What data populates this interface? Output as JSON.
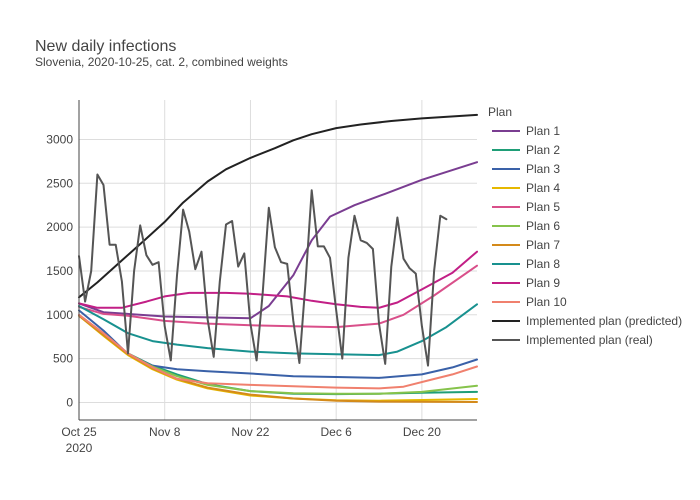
{
  "chart_data": {
    "type": "line",
    "title": "New daily infections",
    "subtitle": "Slovenia, 2020-10-25, cat. 2, combined weights",
    "xlabel": "",
    "ylabel": "",
    "x_range": [
      "2020-10-25",
      "2020-12-29"
    ],
    "ylim": [
      -200,
      3450
    ],
    "x_ticks": [
      {
        "date": "2020-10-25",
        "label": "Oct 25",
        "sublabel": "2020"
      },
      {
        "date": "2020-11-08",
        "label": "Nov 8",
        "sublabel": ""
      },
      {
        "date": "2020-11-22",
        "label": "Nov 22",
        "sublabel": ""
      },
      {
        "date": "2020-12-06",
        "label": "Dec 6",
        "sublabel": ""
      },
      {
        "date": "2020-12-20",
        "label": "Dec 20",
        "sublabel": ""
      }
    ],
    "y_ticks": [
      0,
      500,
      1000,
      1500,
      2000,
      2500,
      3000
    ],
    "y_tick_labels": [
      "0",
      "500",
      "1000",
      "1500",
      "2000",
      "2500",
      "3000"
    ],
    "grid": true,
    "legend": {
      "title": "Plan",
      "position": "right"
    },
    "series": [
      {
        "name": "Plan 1",
        "color": "#7a3d91",
        "points": [
          [
            "2020-10-25",
            1130
          ],
          [
            "2020-10-29",
            1030
          ],
          [
            "2020-11-08",
            980
          ],
          [
            "2020-11-22",
            960
          ],
          [
            "2020-11-25",
            1100
          ],
          [
            "2020-11-29",
            1450
          ],
          [
            "2020-12-02",
            1850
          ],
          [
            "2020-12-05",
            2120
          ],
          [
            "2020-12-09",
            2250
          ],
          [
            "2020-12-14",
            2380
          ],
          [
            "2020-12-20",
            2540
          ],
          [
            "2020-12-29",
            2740
          ]
        ]
      },
      {
        "name": "Plan 2",
        "color": "#1f9e77",
        "points": [
          [
            "2020-10-25",
            990
          ],
          [
            "2020-10-29",
            780
          ],
          [
            "2020-11-02",
            560
          ],
          [
            "2020-11-06",
            420
          ],
          [
            "2020-11-10",
            320
          ],
          [
            "2020-11-15",
            210
          ],
          [
            "2020-11-22",
            130
          ],
          [
            "2020-11-29",
            100
          ],
          [
            "2020-12-06",
            95
          ],
          [
            "2020-12-13",
            100
          ],
          [
            "2020-12-20",
            110
          ],
          [
            "2020-12-29",
            120
          ]
        ]
      },
      {
        "name": "Plan 3",
        "color": "#3a61a8",
        "points": [
          [
            "2020-10-25",
            1050
          ],
          [
            "2020-10-29",
            820
          ],
          [
            "2020-11-02",
            550
          ],
          [
            "2020-11-06",
            420
          ],
          [
            "2020-11-10",
            380
          ],
          [
            "2020-11-15",
            355
          ],
          [
            "2020-11-22",
            330
          ],
          [
            "2020-11-29",
            300
          ],
          [
            "2020-12-06",
            290
          ],
          [
            "2020-12-13",
            280
          ],
          [
            "2020-12-20",
            320
          ],
          [
            "2020-12-25",
            400
          ],
          [
            "2020-12-29",
            490
          ]
        ]
      },
      {
        "name": "Plan 4",
        "color": "#e6b800",
        "points": [
          [
            "2020-10-25",
            990
          ],
          [
            "2020-10-29",
            760
          ],
          [
            "2020-11-02",
            540
          ],
          [
            "2020-11-06",
            380
          ],
          [
            "2020-11-10",
            260
          ],
          [
            "2020-11-15",
            160
          ],
          [
            "2020-11-22",
            80
          ],
          [
            "2020-11-29",
            45
          ],
          [
            "2020-12-06",
            25
          ],
          [
            "2020-12-13",
            20
          ],
          [
            "2020-12-20",
            28
          ],
          [
            "2020-12-29",
            40
          ]
        ]
      },
      {
        "name": "Plan 5",
        "color": "#d94f8a",
        "points": [
          [
            "2020-10-25",
            1090
          ],
          [
            "2020-10-29",
            1010
          ],
          [
            "2020-11-02",
            990
          ],
          [
            "2020-11-08",
            930
          ],
          [
            "2020-11-15",
            900
          ],
          [
            "2020-11-22",
            880
          ],
          [
            "2020-11-29",
            870
          ],
          [
            "2020-12-06",
            860
          ],
          [
            "2020-12-13",
            900
          ],
          [
            "2020-12-17",
            1000
          ],
          [
            "2020-12-22",
            1220
          ],
          [
            "2020-12-29",
            1560
          ]
        ]
      },
      {
        "name": "Plan 6",
        "color": "#86c34b",
        "points": [
          [
            "2020-10-25",
            990
          ],
          [
            "2020-10-29",
            780
          ],
          [
            "2020-11-02",
            555
          ],
          [
            "2020-11-06",
            410
          ],
          [
            "2020-11-10",
            300
          ],
          [
            "2020-11-15",
            200
          ],
          [
            "2020-11-22",
            130
          ],
          [
            "2020-11-29",
            105
          ],
          [
            "2020-12-06",
            100
          ],
          [
            "2020-12-13",
            100
          ],
          [
            "2020-12-20",
            120
          ],
          [
            "2020-12-29",
            190
          ]
        ]
      },
      {
        "name": "Plan 7",
        "color": "#d48a1a",
        "points": [
          [
            "2020-10-25",
            990
          ],
          [
            "2020-10-29",
            770
          ],
          [
            "2020-11-02",
            550
          ],
          [
            "2020-11-06",
            390
          ],
          [
            "2020-11-10",
            270
          ],
          [
            "2020-11-15",
            170
          ],
          [
            "2020-11-22",
            90
          ],
          [
            "2020-11-29",
            45
          ],
          [
            "2020-12-06",
            20
          ],
          [
            "2020-12-13",
            10
          ],
          [
            "2020-12-20",
            8
          ],
          [
            "2020-12-29",
            5
          ]
        ]
      },
      {
        "name": "Plan 8",
        "color": "#18918f",
        "points": [
          [
            "2020-10-25",
            1100
          ],
          [
            "2020-10-29",
            950
          ],
          [
            "2020-11-02",
            790
          ],
          [
            "2020-11-06",
            700
          ],
          [
            "2020-11-10",
            660
          ],
          [
            "2020-11-15",
            620
          ],
          [
            "2020-11-22",
            580
          ],
          [
            "2020-11-29",
            560
          ],
          [
            "2020-12-06",
            550
          ],
          [
            "2020-12-13",
            540
          ],
          [
            "2020-12-16",
            580
          ],
          [
            "2020-12-20",
            700
          ],
          [
            "2020-12-24",
            860
          ],
          [
            "2020-12-29",
            1120
          ]
        ]
      },
      {
        "name": "Plan 9",
        "color": "#c21f86",
        "points": [
          [
            "2020-10-25",
            1130
          ],
          [
            "2020-10-28",
            1080
          ],
          [
            "2020-11-01",
            1080
          ],
          [
            "2020-11-05",
            1150
          ],
          [
            "2020-11-08",
            1210
          ],
          [
            "2020-11-12",
            1250
          ],
          [
            "2020-11-18",
            1250
          ],
          [
            "2020-11-22",
            1240
          ],
          [
            "2020-11-28",
            1210
          ],
          [
            "2020-12-02",
            1160
          ],
          [
            "2020-12-06",
            1120
          ],
          [
            "2020-12-10",
            1090
          ],
          [
            "2020-12-13",
            1080
          ],
          [
            "2020-12-16",
            1140
          ],
          [
            "2020-12-20",
            1290
          ],
          [
            "2020-12-25",
            1480
          ],
          [
            "2020-12-29",
            1720
          ]
        ]
      },
      {
        "name": "Plan 10",
        "color": "#f0806e",
        "points": [
          [
            "2020-10-25",
            1000
          ],
          [
            "2020-10-29",
            790
          ],
          [
            "2020-11-02",
            560
          ],
          [
            "2020-11-06",
            400
          ],
          [
            "2020-11-10",
            270
          ],
          [
            "2020-11-15",
            220
          ],
          [
            "2020-11-22",
            200
          ],
          [
            "2020-11-29",
            185
          ],
          [
            "2020-12-06",
            170
          ],
          [
            "2020-12-13",
            160
          ],
          [
            "2020-12-17",
            180
          ],
          [
            "2020-12-21",
            250
          ],
          [
            "2020-12-25",
            320
          ],
          [
            "2020-12-29",
            410
          ]
        ]
      },
      {
        "name": "Implemented plan (predicted)",
        "color": "#222222",
        "points": [
          [
            "2020-10-25",
            1200
          ],
          [
            "2020-10-28",
            1370
          ],
          [
            "2020-11-01",
            1620
          ],
          [
            "2020-11-05",
            1870
          ],
          [
            "2020-11-08",
            2060
          ],
          [
            "2020-11-11",
            2280
          ],
          [
            "2020-11-15",
            2520
          ],
          [
            "2020-11-18",
            2660
          ],
          [
            "2020-11-22",
            2790
          ],
          [
            "2020-11-26",
            2900
          ],
          [
            "2020-11-29",
            2990
          ],
          [
            "2020-12-02",
            3060
          ],
          [
            "2020-12-06",
            3130
          ],
          [
            "2020-12-10",
            3170
          ],
          [
            "2020-12-15",
            3210
          ],
          [
            "2020-12-20",
            3240
          ],
          [
            "2020-12-29",
            3280
          ]
        ]
      },
      {
        "name": "Implemented plan (real)",
        "color": "#555555",
        "points": [
          [
            "2020-10-25",
            1670
          ],
          [
            "2020-10-26",
            1150
          ],
          [
            "2020-10-27",
            1500
          ],
          [
            "2020-10-28",
            2600
          ],
          [
            "2020-10-29",
            2480
          ],
          [
            "2020-10-30",
            1800
          ],
          [
            "2020-10-31",
            1800
          ],
          [
            "2020-11-01",
            1380
          ],
          [
            "2020-11-02",
            560
          ],
          [
            "2020-11-03",
            1500
          ],
          [
            "2020-11-04",
            2020
          ],
          [
            "2020-11-05",
            1680
          ],
          [
            "2020-11-06",
            1570
          ],
          [
            "2020-11-07",
            1600
          ],
          [
            "2020-11-08",
            870
          ],
          [
            "2020-11-09",
            480
          ],
          [
            "2020-11-10",
            1450
          ],
          [
            "2020-11-11",
            2200
          ],
          [
            "2020-11-12",
            1950
          ],
          [
            "2020-11-13",
            1520
          ],
          [
            "2020-11-14",
            1720
          ],
          [
            "2020-11-15",
            950
          ],
          [
            "2020-11-16",
            520
          ],
          [
            "2020-11-17",
            1380
          ],
          [
            "2020-11-18",
            2030
          ],
          [
            "2020-11-19",
            2070
          ],
          [
            "2020-11-20",
            1550
          ],
          [
            "2020-11-21",
            1700
          ],
          [
            "2020-11-22",
            900
          ],
          [
            "2020-11-23",
            480
          ],
          [
            "2020-11-24",
            1250
          ],
          [
            "2020-11-25",
            2220
          ],
          [
            "2020-11-26",
            1770
          ],
          [
            "2020-11-27",
            1600
          ],
          [
            "2020-11-28",
            1580
          ],
          [
            "2020-11-29",
            930
          ],
          [
            "2020-11-30",
            450
          ],
          [
            "2020-12-01",
            1380
          ],
          [
            "2020-12-02",
            2420
          ],
          [
            "2020-12-03",
            1780
          ],
          [
            "2020-12-04",
            1780
          ],
          [
            "2020-12-05",
            1650
          ],
          [
            "2020-12-06",
            1050
          ],
          [
            "2020-12-07",
            500
          ],
          [
            "2020-12-08",
            1650
          ],
          [
            "2020-12-09",
            2130
          ],
          [
            "2020-12-10",
            1850
          ],
          [
            "2020-12-11",
            1820
          ],
          [
            "2020-12-12",
            1750
          ],
          [
            "2020-12-13",
            900
          ],
          [
            "2020-12-14",
            440
          ],
          [
            "2020-12-15",
            1550
          ],
          [
            "2020-12-16",
            2110
          ],
          [
            "2020-12-17",
            1640
          ],
          [
            "2020-12-18",
            1530
          ],
          [
            "2020-12-19",
            1470
          ],
          [
            "2020-12-20",
            870
          ],
          [
            "2020-12-21",
            420
          ],
          [
            "2020-12-22",
            1500
          ],
          [
            "2020-12-23",
            2130
          ],
          [
            "2020-12-24",
            2090
          ]
        ]
      }
    ]
  }
}
